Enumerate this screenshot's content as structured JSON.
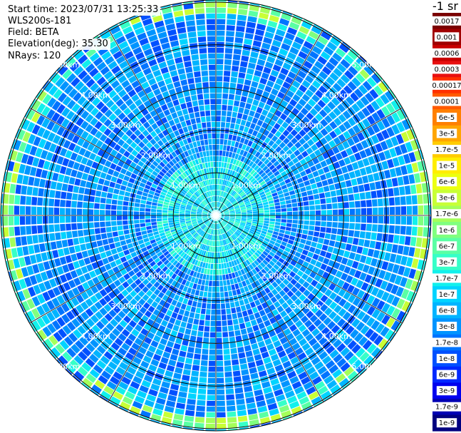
{
  "header": {
    "start_time": "Start time: 2023/07/31 13:25:33",
    "instrument": "WLS200s-181",
    "field": "Field: BETA",
    "elevation": "Elevation(deg): 35.30",
    "nrays": "NRays: 120"
  },
  "colorbar": {
    "unit_title": "-1 sr",
    "levels": [
      {
        "label": "0.0017",
        "color": "#7a0000"
      },
      {
        "label": "0.001",
        "color": "#a00000"
      },
      {
        "label": "0.0006",
        "color": "#c80000"
      },
      {
        "label": "0.0003",
        "color": "#e81010"
      },
      {
        "label": "0.00017",
        "color": "#ff3000"
      },
      {
        "label": "0.0001",
        "color": "#ff5a00"
      },
      {
        "label": "6e-5",
        "color": "#ff8000"
      },
      {
        "label": "3e-5",
        "color": "#ffa500"
      },
      {
        "label": "1.7e-5",
        "color": "#ffcc00"
      },
      {
        "label": "1e-5",
        "color": "#ffee00"
      },
      {
        "label": "6e-6",
        "color": "#ecff10"
      },
      {
        "label": "3e-6",
        "color": "#c8ff36"
      },
      {
        "label": "1.7e-6",
        "color": "#a4ff5a"
      },
      {
        "label": "1e-6",
        "color": "#80ff7e"
      },
      {
        "label": "6e-7",
        "color": "#5affa4"
      },
      {
        "label": "3e-7",
        "color": "#36ffc8"
      },
      {
        "label": "1.7e-7",
        "color": "#12f0ec"
      },
      {
        "label": "1e-7",
        "color": "#00d4ff"
      },
      {
        "label": "6e-8",
        "color": "#00b4ff"
      },
      {
        "label": "3e-8",
        "color": "#0094ff"
      },
      {
        "label": "1.7e-8",
        "color": "#0074ff"
      },
      {
        "label": "1e-8",
        "color": "#0050ff"
      },
      {
        "label": "6e-9",
        "color": "#0028ff"
      },
      {
        "label": "3e-9",
        "color": "#0000ee"
      },
      {
        "label": "1.7e-9",
        "color": "#0000b4"
      },
      {
        "label": "1e-9",
        "color": "#000080"
      }
    ]
  },
  "chart_data": {
    "type": "heatmap",
    "projection": "polar (PPI scan)",
    "field": "BETA",
    "elevation_deg": 35.3,
    "n_rays": 120,
    "range_rings_km": [
      1.0,
      2.0,
      3.0,
      4.0,
      5.0
    ],
    "range_labels": [
      "1.00km",
      "2.00km",
      "3.00km",
      "4.00km",
      "5.00km"
    ],
    "max_range_km": 5.05,
    "dominant_level": "1e-8 to 6e-8 (blue)",
    "features": [
      {
        "description": "enhanced backscatter ring",
        "range_km": 4.85,
        "level": "1e-6 to 6e-6"
      },
      {
        "description": "cyan near-field region",
        "range_km_max": 1.4,
        "level": "1e-7 to 3e-7"
      }
    ],
    "grid": true
  }
}
